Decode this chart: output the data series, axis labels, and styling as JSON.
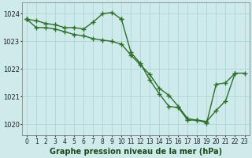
{
  "bg_color": "#ceeaea",
  "grid_color": "#b0d4d4",
  "line_color": "#2d6e2d",
  "line_width": 1.0,
  "marker": "+",
  "marker_size": 4,
  "marker_ew": 1.0,
  "xlabel": "Graphe pression niveau de la mer (hPa)",
  "xlabel_fontsize": 7.0,
  "xlim": [
    -0.5,
    23.5
  ],
  "ylim": [
    1019.6,
    1024.4
  ],
  "yticks": [
    1020,
    1021,
    1022,
    1023,
    1024
  ],
  "xticks": [
    0,
    1,
    2,
    3,
    4,
    5,
    6,
    7,
    8,
    9,
    10,
    11,
    12,
    13,
    14,
    15,
    16,
    17,
    18,
    19,
    20,
    21,
    22,
    23
  ],
  "tick_fontsize": 5.5,
  "ytick_fontsize": 6.0,
  "series": [
    [
      1023.8,
      1023.75,
      1023.65,
      1023.6,
      1023.5,
      1023.5,
      1023.45,
      1023.7,
      1024.0,
      1024.05,
      1023.8,
      null,
      null,
      null,
      null,
      null,
      null,
      null,
      null,
      null,
      null,
      null,
      null,
      null
    ],
    [
      1023.8,
      1023.5,
      1023.5,
      1023.45,
      1023.35,
      1023.25,
      1023.2,
      1023.1,
      1023.05,
      1023.0,
      1022.9,
      1022.5,
      1022.15,
      1021.8,
      1021.3,
      1021.05,
      1020.65,
      1020.2,
      1020.15,
      1020.1,
      1020.5,
      1020.85,
      1021.85,
      null
    ],
    [
      1023.8,
      null,
      null,
      null,
      null,
      null,
      null,
      null,
      null,
      null,
      1023.8,
      1022.6,
      1022.2,
      1021.6,
      1021.1,
      1020.65,
      1020.6,
      1020.15,
      1020.15,
      1020.05,
      1021.45,
      1021.5,
      1021.85,
      1021.85
    ]
  ]
}
